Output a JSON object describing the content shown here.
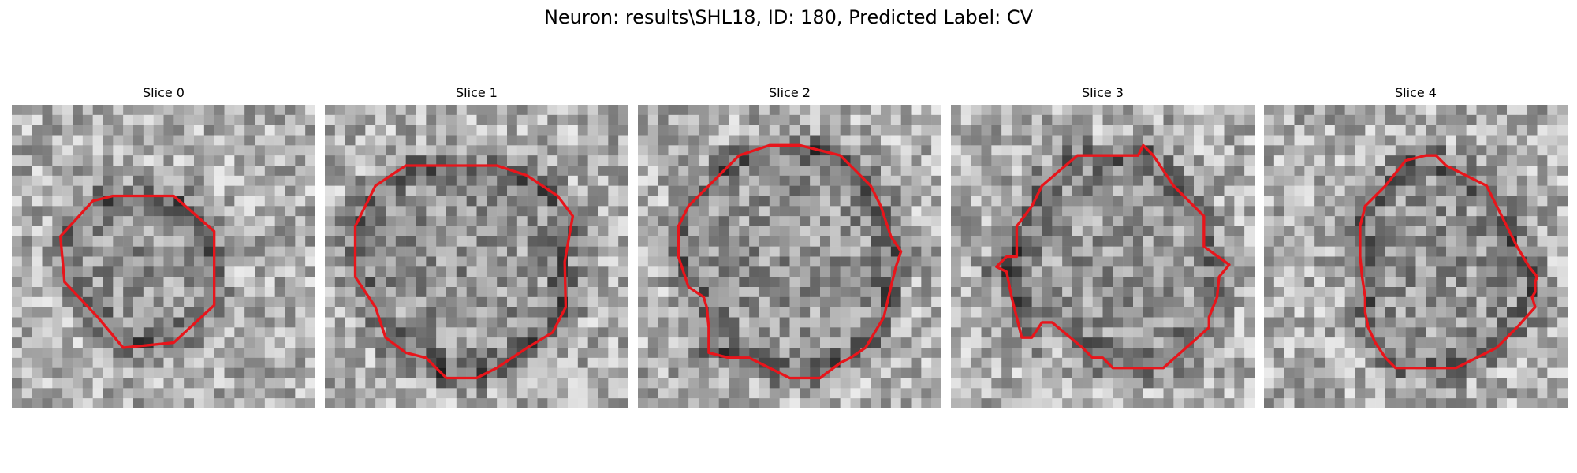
{
  "figure": {
    "title": "Neuron: results\\SHL18, ID: 180, Predicted Label: CV"
  },
  "panels": [
    {
      "title": "Slice 0",
      "seed": 11,
      "contour_color": "#e8151b"
    },
    {
      "title": "Slice 1",
      "seed": 23,
      "contour_color": "#e8151b"
    },
    {
      "title": "Slice 2",
      "seed": 37,
      "contour_color": "#e8151b"
    },
    {
      "title": "Slice 3",
      "seed": 51,
      "contour_color": "#e8151b"
    },
    {
      "title": "Slice 4",
      "seed": 67,
      "contour_color": "#e8151b"
    }
  ],
  "colormap": "gray",
  "interior_tone": "mid-gray textured",
  "boundary_tone": "dark"
}
